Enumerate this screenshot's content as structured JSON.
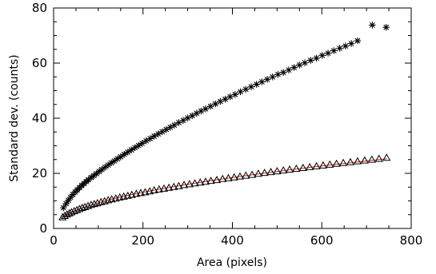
{
  "chart_data": {
    "type": "scatter",
    "xlabel": "Area (pixels)",
    "ylabel": "Standard dev. (counts)",
    "xlim": [
      0,
      800
    ],
    "ylim": [
      0,
      80
    ],
    "xticks": [
      0,
      200,
      400,
      600,
      800
    ],
    "yticks": [
      0,
      20,
      40,
      60,
      80
    ],
    "tick_labels": {
      "x": [
        "0",
        "200",
        "400",
        "600",
        "800"
      ],
      "y": [
        "0",
        "20",
        "40",
        "60",
        "80"
      ]
    },
    "grid": false,
    "legend": "none",
    "series": [
      {
        "marker": "asterisk",
        "color": "#000000",
        "x": [
          22,
          28,
          33,
          38,
          43,
          48,
          53,
          58,
          63,
          68,
          73,
          78,
          84,
          90,
          96,
          102,
          108,
          115,
          122,
          129,
          136,
          143,
          150,
          158,
          166,
          174,
          182,
          190,
          198,
          207,
          216,
          225,
          234,
          243,
          252,
          261,
          270,
          280,
          290,
          300,
          310,
          320,
          330,
          340,
          351,
          362,
          373,
          384,
          395,
          406,
          418,
          430,
          442,
          454,
          466,
          478,
          490,
          502,
          514,
          526,
          538,
          550,
          562,
          575,
          588,
          601,
          614,
          627,
          640,
          653,
          666,
          680,
          713,
          744
        ],
        "y": [
          7.5,
          9,
          10.2,
          11.3,
          12.3,
          13.2,
          14,
          14.8,
          15.6,
          16.3,
          17,
          17.7,
          18.5,
          19.2,
          19.9,
          20.7,
          21.4,
          22.2,
          23,
          23.8,
          24.5,
          25.3,
          26,
          26.9,
          27.7,
          28.5,
          29.3,
          30.1,
          30.9,
          31.8,
          32.6,
          33.5,
          34.3,
          35.1,
          35.9,
          36.7,
          37.5,
          38.4,
          39.2,
          40.1,
          40.9,
          41.8,
          42.6,
          43.4,
          44.3,
          45.2,
          46.1,
          46.9,
          47.8,
          48.6,
          49.6,
          50.5,
          51.4,
          52.3,
          53.2,
          54.1,
          55,
          55.9,
          56.6,
          57.5,
          58.4,
          59.3,
          60.1,
          61,
          61.8,
          62.8,
          63.6,
          64.5,
          65.4,
          66.2,
          67.1,
          68.1,
          73.8,
          73
        ]
      },
      {
        "marker": "triangle",
        "color": "#000000",
        "x": [
          20,
          25,
          30,
          35,
          40,
          46,
          52,
          58,
          64,
          70,
          77,
          84,
          91,
          98,
          106,
          114,
          122,
          130,
          139,
          148,
          157,
          166,
          175,
          185,
          195,
          205,
          215,
          225,
          236,
          247,
          258,
          269,
          280,
          292,
          304,
          316,
          328,
          340,
          352,
          365,
          378,
          391,
          404,
          417,
          430,
          444,
          458,
          472,
          486,
          500,
          514,
          528,
          543,
          558,
          573,
          588,
          603,
          618,
          633,
          648,
          664,
          680,
          696,
          712,
          728,
          745
        ],
        "y": [
          4.1,
          4.6,
          5.1,
          5.5,
          5.9,
          6.3,
          6.7,
          7.1,
          7.5,
          7.8,
          8.2,
          8.6,
          8.9,
          9.2,
          9.6,
          9.9,
          10.3,
          10.6,
          10.9,
          11.3,
          11.6,
          11.9,
          12.2,
          12.6,
          12.9,
          13.2,
          13.5,
          13.9,
          14.2,
          14.5,
          14.8,
          15.1,
          15.4,
          15.8,
          16.1,
          16.4,
          16.7,
          17,
          17.3,
          17.6,
          18,
          18.3,
          18.6,
          18.9,
          19.2,
          19.5,
          19.9,
          20.2,
          20.5,
          20.8,
          21.1,
          21.4,
          21.7,
          22,
          22.3,
          22.6,
          22.9,
          23.2,
          23.5,
          23.8,
          24.1,
          24.4,
          24.7,
          25,
          25.3,
          25.7
        ]
      }
    ],
    "fit_line": {
      "color": "#d62728",
      "x": [
        20,
        40,
        60,
        80,
        100,
        130,
        160,
        200,
        250,
        300,
        350,
        400,
        450,
        500,
        550,
        600,
        650,
        700,
        745
      ],
      "y": [
        4.0,
        5.8,
        7.2,
        8.3,
        9.3,
        10.6,
        11.8,
        13.1,
        14.6,
        16.0,
        17.3,
        18.5,
        19.6,
        20.7,
        21.7,
        22.7,
        23.6,
        24.5,
        25.3
      ]
    }
  }
}
